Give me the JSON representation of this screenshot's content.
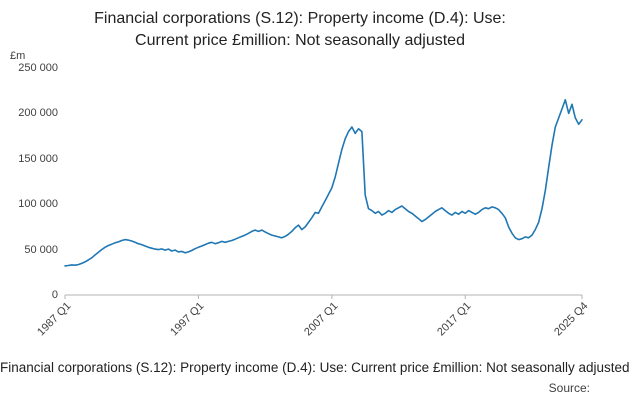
{
  "title_lines": [
    "Financial corporations (S.12): Property income (D.4): Use:",
    "Current price £million: Not seasonally adjusted"
  ],
  "footer": {
    "caption": "Financial corporations (S.12): Property income (D.4): Use: Current price £million: Not seasonally adjusted",
    "source_label": "Source:"
  },
  "chart_data": {
    "type": "line",
    "title": "Financial corporations (S.12): Property income (D.4): Use: Current price £million: Not seasonally adjusted",
    "unit_label": "£m",
    "frequency": "quarterly",
    "x_start": "1987 Q1",
    "x_end": "2025 Q4",
    "ylim": [
      0,
      250000
    ],
    "grid": false,
    "legend": "none",
    "line_color": "#1f77b4",
    "axis_color": "#b3b3b3",
    "text_color": "#414042",
    "ytick_values": [
      0,
      50000,
      100000,
      150000,
      200000,
      250000
    ],
    "ytick_labels": [
      "0",
      "50 000",
      "100 000",
      "150 000",
      "200 000",
      "250 000"
    ],
    "xtick_labels": [
      "1987 Q1",
      "1997 Q1",
      "2007 Q1",
      "2017 Q1",
      "2025 Q4"
    ],
    "xtick_indices": [
      0,
      40,
      80,
      120,
      155
    ],
    "values": [
      32000,
      32500,
      33200,
      32800,
      33500,
      34800,
      36500,
      38500,
      41000,
      44000,
      47000,
      50000,
      52500,
      54500,
      56000,
      57500,
      58500,
      60000,
      61000,
      60500,
      59500,
      58000,
      56500,
      55500,
      54000,
      52500,
      51500,
      50500,
      50000,
      50800,
      49500,
      50500,
      48500,
      49500,
      47500,
      48000,
      46500,
      47500,
      49000,
      51000,
      52500,
      54000,
      55500,
      57000,
      58000,
      56500,
      57500,
      59000,
      58000,
      59000,
      60000,
      61500,
      63000,
      64500,
      66000,
      68000,
      70000,
      71500,
      70000,
      71500,
      69500,
      67500,
      66000,
      65000,
      64000,
      63000,
      64500,
      67000,
      70000,
      74000,
      77000,
      72000,
      75000,
      80000,
      85000,
      91000,
      90000,
      97000,
      104000,
      111000,
      118000,
      130000,
      145000,
      160000,
      172000,
      180000,
      185000,
      178000,
      183000,
      180000,
      110000,
      95000,
      93000,
      90000,
      92000,
      88000,
      90000,
      93000,
      91000,
      94000,
      96000,
      98000,
      95000,
      92000,
      90000,
      87000,
      84000,
      81000,
      83000,
      86000,
      89000,
      92000,
      94000,
      96000,
      93000,
      90000,
      88000,
      91000,
      89000,
      92000,
      90000,
      93000,
      91000,
      89000,
      91000,
      94000,
      96000,
      95000,
      97000,
      96000,
      94000,
      90000,
      85000,
      75000,
      68000,
      63000,
      61000,
      62000,
      64000,
      63000,
      66000,
      72000,
      80000,
      95000,
      115000,
      140000,
      165000,
      185000,
      195000,
      205000,
      215000,
      200000,
      210000,
      195000,
      188000,
      193000
    ]
  }
}
